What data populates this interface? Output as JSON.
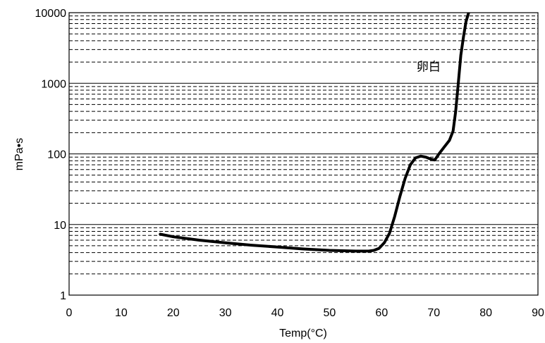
{
  "chart_data": {
    "type": "line",
    "title": "",
    "xlabel": "Temp(°C)",
    "ylabel": "mPa•s",
    "xlim": [
      0,
      90
    ],
    "ylim": [
      1,
      10000
    ],
    "y_scale": "log",
    "grid": "major solid, minor dashed (horizontal only)",
    "x_ticks": [
      "0",
      "10",
      "20",
      "30",
      "40",
      "50",
      "60",
      "70",
      "80",
      "90"
    ],
    "y_ticks": [
      "1",
      "10",
      "100",
      "1000",
      "10000"
    ],
    "annotations": [
      {
        "text": "卵白",
        "x": 69,
        "y": 1500
      }
    ],
    "series": [
      {
        "color": "#000000",
        "x": [
          17.5,
          20,
          25,
          30,
          35,
          40,
          45,
          50,
          55,
          57.5,
          58.5,
          59.5,
          60.5,
          61.5,
          62.5,
          63.5,
          64.5,
          65.5,
          66.5,
          67.5,
          68.5,
          69.5,
          70.2,
          71,
          72,
          73,
          73.7,
          74.2,
          74.7,
          75.2,
          75.7,
          76.2,
          76.7
        ],
        "y": [
          7.3,
          6.7,
          6.0,
          5.5,
          5.1,
          4.8,
          4.5,
          4.3,
          4.2,
          4.2,
          4.3,
          4.6,
          5.5,
          7.5,
          13,
          25,
          45,
          70,
          88,
          93,
          90,
          84,
          82,
          100,
          125,
          155,
          210,
          400,
          1000,
          2500,
          4500,
          7500,
          10000
        ]
      }
    ]
  }
}
